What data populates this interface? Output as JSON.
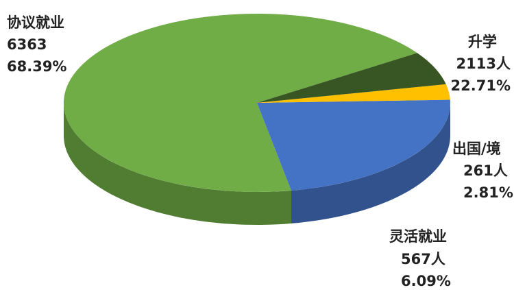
{
  "chart_data": {
    "type": "pie",
    "style": "3d",
    "series": [
      {
        "category": "协议就业",
        "value": 6363,
        "value_label": "6363",
        "percent_label": "68.39%",
        "color": "#70AD47"
      },
      {
        "category": "升学",
        "value": 2113,
        "value_label": "2113人",
        "percent_label": "22.71%",
        "color": "#4472C4"
      },
      {
        "category": "出国/境",
        "value": 261,
        "value_label": "261人",
        "percent_label": "2.81%",
        "color": "#FFC000"
      },
      {
        "category": "灵活就业",
        "value": 567,
        "value_label": "567人",
        "percent_label": "6.09%",
        "color": "#375623"
      }
    ]
  }
}
